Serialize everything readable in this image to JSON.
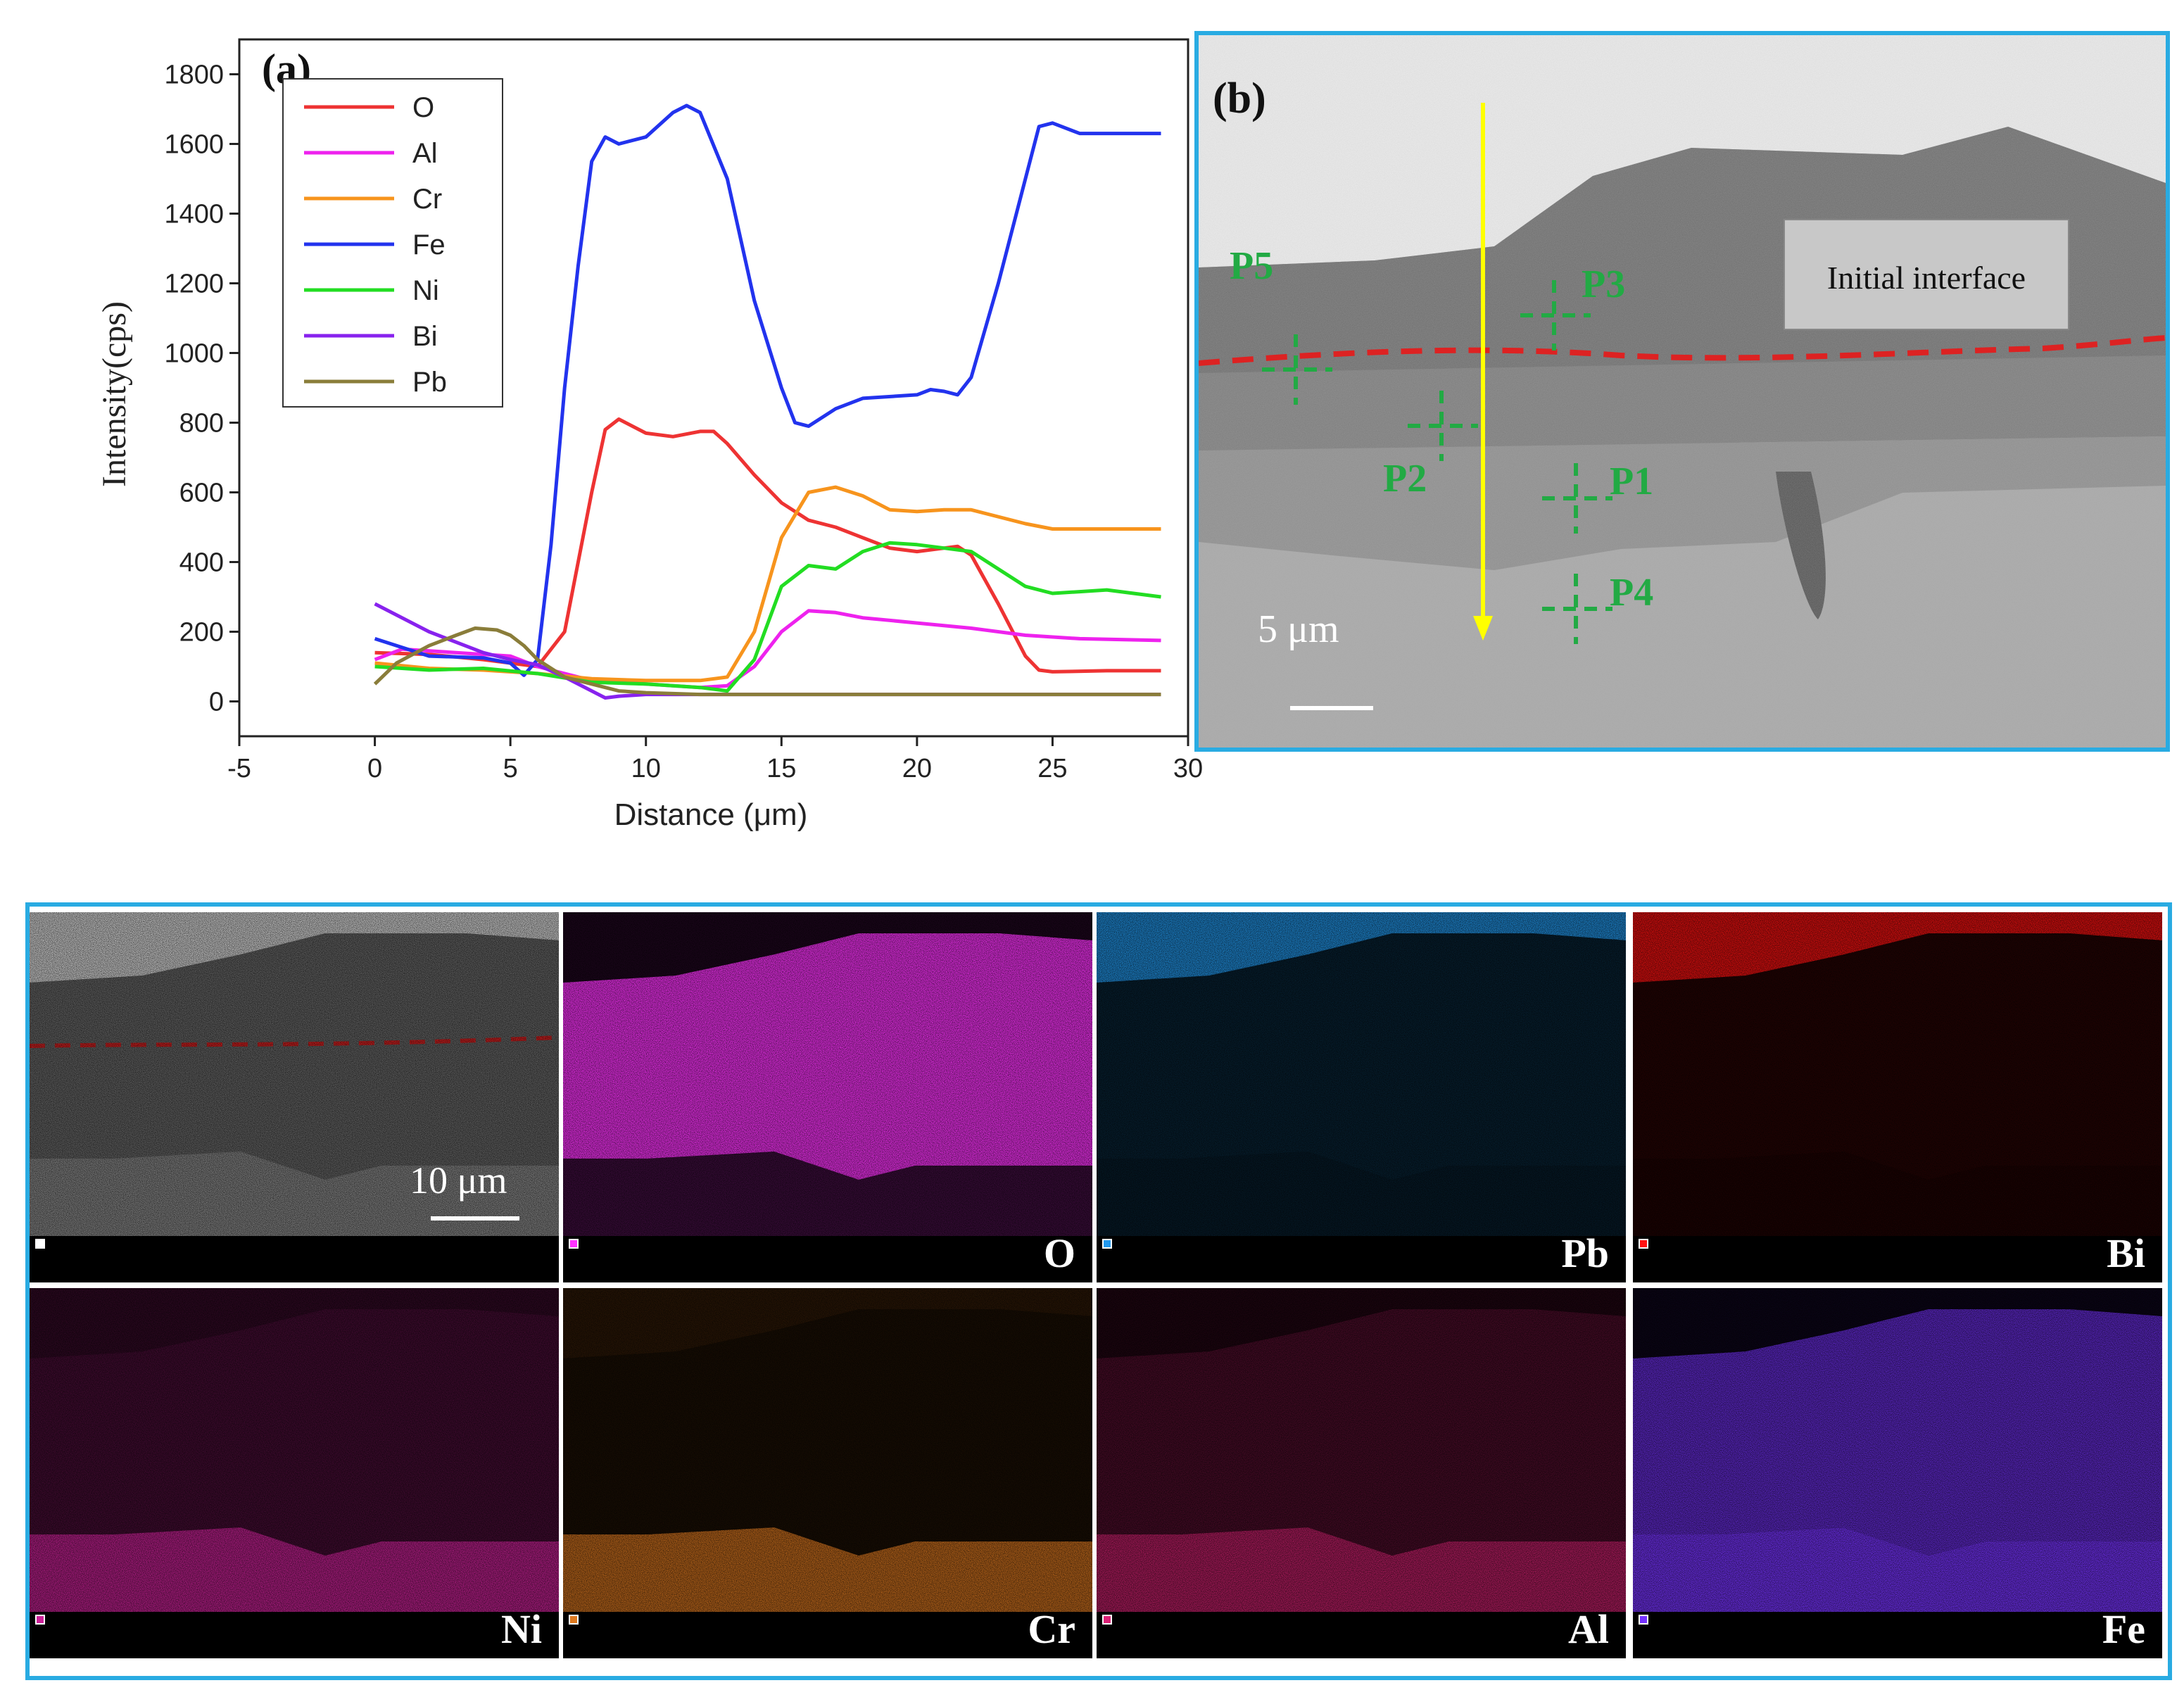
{
  "chart_data": {
    "type": "line",
    "panel_label": "(a)",
    "xlabel": "Distance (μm)",
    "ylabel": "Intensity(cps)",
    "xlim": [
      -5,
      30
    ],
    "ylim": [
      -100,
      1900
    ],
    "xticks": [
      "-5",
      "0",
      "5",
      "10",
      "15",
      "20",
      "25",
      "30"
    ],
    "yticks": [
      "0",
      "200",
      "400",
      "600",
      "800",
      "1000",
      "1200",
      "1400",
      "1600",
      "1800"
    ],
    "legend_position": "top-left",
    "series": [
      {
        "name": "O",
        "color": "#ee3333",
        "x": [
          0,
          2,
          4,
          5,
          6,
          7,
          8,
          8.5,
          9,
          10,
          11,
          12,
          12.5,
          13,
          14,
          15,
          16,
          17,
          18,
          19,
          20,
          21,
          21.5,
          22,
          23,
          24,
          24.5,
          25,
          27,
          29
        ],
        "y": [
          140,
          135,
          120,
          110,
          100,
          200,
          600,
          780,
          810,
          770,
          760,
          775,
          775,
          740,
          650,
          570,
          520,
          500,
          470,
          440,
          430,
          440,
          445,
          420,
          280,
          130,
          90,
          85,
          88,
          88
        ]
      },
      {
        "name": "Al",
        "color": "#ee22ee",
        "x": [
          0,
          1,
          3,
          5,
          6,
          8,
          10,
          12,
          13,
          14,
          15,
          16,
          17,
          18,
          20,
          22,
          24,
          26,
          29
        ],
        "y": [
          120,
          150,
          140,
          130,
          100,
          60,
          50,
          40,
          45,
          100,
          200,
          260,
          255,
          240,
          225,
          210,
          190,
          180,
          175
        ]
      },
      {
        "name": "Cr",
        "color": "#f7941d",
        "x": [
          0,
          2,
          4,
          6,
          8,
          10,
          12,
          13,
          14,
          15,
          16,
          17,
          18,
          19,
          20,
          21,
          22,
          24,
          25,
          27,
          29
        ],
        "y": [
          110,
          95,
          90,
          80,
          65,
          60,
          60,
          70,
          200,
          470,
          600,
          615,
          590,
          550,
          545,
          550,
          550,
          510,
          495,
          495,
          495
        ]
      },
      {
        "name": "Fe",
        "color": "#2233ee",
        "x": [
          0,
          2,
          4,
          5,
          5.5,
          6,
          6.5,
          7,
          7.5,
          8,
          8.5,
          9,
          10,
          11,
          11.5,
          12,
          13,
          14,
          15,
          15.5,
          16,
          17,
          18,
          20,
          20.5,
          21,
          21.5,
          22,
          23,
          24,
          24.5,
          25,
          26,
          27,
          29
        ],
        "y": [
          180,
          130,
          125,
          110,
          75,
          120,
          450,
          900,
          1250,
          1550,
          1620,
          1600,
          1620,
          1690,
          1710,
          1690,
          1500,
          1150,
          900,
          800,
          790,
          840,
          870,
          880,
          895,
          890,
          880,
          930,
          1200,
          1500,
          1650,
          1660,
          1630,
          1630,
          1630
        ]
      },
      {
        "name": "Ni",
        "color": "#22dd22",
        "x": [
          0,
          2,
          4,
          6,
          8,
          10,
          12,
          13,
          14,
          15,
          16,
          17,
          18,
          19,
          20,
          21,
          22,
          23,
          24,
          25,
          26,
          27,
          29
        ],
        "y": [
          100,
          90,
          95,
          80,
          55,
          50,
          40,
          30,
          120,
          330,
          390,
          380,
          430,
          455,
          450,
          440,
          430,
          380,
          330,
          310,
          315,
          320,
          300
        ]
      },
      {
        "name": "Bi",
        "color": "#8822ee",
        "x": [
          0,
          2,
          4,
          5,
          6,
          7,
          8,
          8.5,
          9,
          10,
          12,
          15,
          20,
          25,
          29
        ],
        "y": [
          280,
          200,
          140,
          120,
          105,
          70,
          30,
          10,
          15,
          20,
          20,
          20,
          20,
          20,
          20
        ]
      },
      {
        "name": "Pb",
        "color": "#8a7d3a",
        "x": [
          0,
          0.8,
          2,
          3,
          3.7,
          4.5,
          5,
          5.5,
          6,
          7,
          8,
          9,
          10,
          12,
          15,
          20,
          25,
          29
        ],
        "y": [
          50,
          110,
          160,
          190,
          210,
          205,
          190,
          160,
          120,
          70,
          50,
          30,
          25,
          20,
          20,
          20,
          20,
          20
        ]
      }
    ]
  },
  "panel_b": {
    "label": "(b)",
    "annotation": "Initial interface",
    "scale_bar": "5 μm",
    "points": [
      "P1",
      "P2",
      "P3",
      "P4",
      "P5"
    ],
    "arrow_color": "#ffff00",
    "point_color": "#22aa44",
    "interface_color": "#dd2222"
  },
  "panel_c": {
    "scale_bar": "10 μm",
    "maps": [
      {
        "label": "",
        "color": "#ffffff"
      },
      {
        "label": "O",
        "color": "#ff33ff"
      },
      {
        "label": "Pb",
        "color": "#2299ee"
      },
      {
        "label": "Bi",
        "color": "#ff1111"
      },
      {
        "label": "Ni",
        "color": "#cc2299"
      },
      {
        "label": "Cr",
        "color": "#e07a20"
      },
      {
        "label": "Al",
        "color": "#dd2277"
      },
      {
        "label": "Fe",
        "color": "#7733ff"
      }
    ]
  }
}
